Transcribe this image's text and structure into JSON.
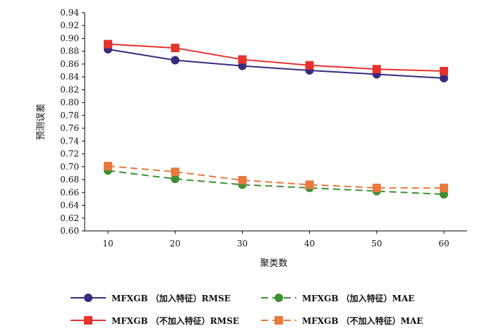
{
  "chart_data": {
    "type": "line",
    "title": "",
    "xlabel": "聚类数",
    "ylabel": "预测误差",
    "x": [
      10,
      20,
      30,
      40,
      50,
      60
    ],
    "xticks": [
      "10",
      "20",
      "30",
      "40",
      "50",
      "60"
    ],
    "ylim": [
      0.6,
      0.94
    ],
    "yticks": [
      "0.60",
      "0.62",
      "0.64",
      "0.66",
      "0.68",
      "0.70",
      "0.72",
      "0.74",
      "0.76",
      "0.78",
      "0.80",
      "0.82",
      "0.84",
      "0.86",
      "0.88",
      "0.90",
      "0.92",
      "0.94"
    ],
    "grid": false,
    "legend_position": "bottom",
    "series": [
      {
        "name": "MFXGB （加入特征）RMSE",
        "color": "#3a2a7e",
        "marker": "circle",
        "dash": false,
        "values": [
          0.883,
          0.866,
          0.857,
          0.85,
          0.844,
          0.838
        ]
      },
      {
        "name": "MFXGB （加入特征）MAE",
        "color": "#3f8f35",
        "marker": "circle",
        "dash": true,
        "values": [
          0.694,
          0.681,
          0.672,
          0.667,
          0.662,
          0.657
        ]
      },
      {
        "name": "MFXGB （不加入特征）RMSE",
        "color": "#e8322d",
        "marker": "square",
        "dash": false,
        "values": [
          0.891,
          0.885,
          0.867,
          0.858,
          0.852,
          0.849
        ]
      },
      {
        "name": "MFXGB （不加入特征）MAE",
        "color": "#e87a3e",
        "marker": "square",
        "dash": true,
        "values": [
          0.701,
          0.692,
          0.679,
          0.672,
          0.667,
          0.667
        ]
      }
    ]
  }
}
